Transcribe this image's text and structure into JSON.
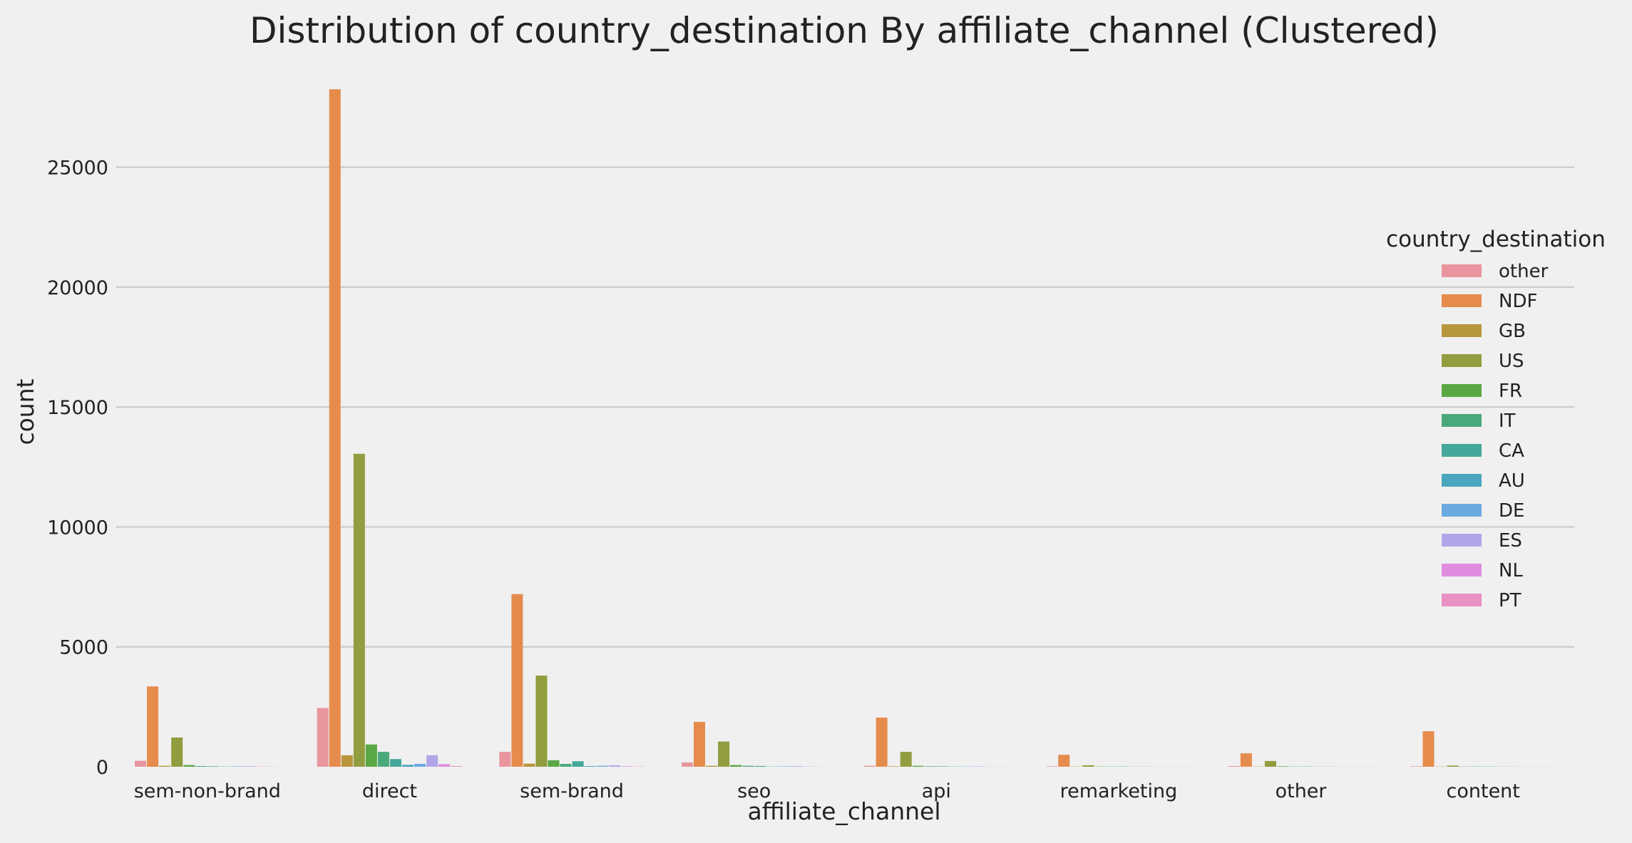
{
  "chart_data": {
    "type": "bar",
    "title": "Distribution of country_destination By affiliate_channel (Clustered)",
    "xlabel": "affiliate_channel",
    "ylabel": "count",
    "ylim": [
      0,
      29000
    ],
    "yticks": [
      0,
      5000,
      10000,
      15000,
      20000,
      25000
    ],
    "grid": "horizontal",
    "legend_title": "country_destination",
    "legend_position": "right",
    "categories": [
      "sem-non-brand",
      "direct",
      "sem-brand",
      "seo",
      "api",
      "remarketing",
      "other",
      "content"
    ],
    "series": [
      {
        "name": "other",
        "color": "#e8959e",
        "values": [
          250,
          2450,
          620,
          180,
          40,
          20,
          30,
          20
        ]
      },
      {
        "name": "NDF",
        "color": "#e58c4d",
        "values": [
          3350,
          28250,
          7200,
          1870,
          2050,
          500,
          560,
          1480
        ]
      },
      {
        "name": "GB",
        "color": "#b8963e",
        "values": [
          40,
          480,
          130,
          40,
          20,
          10,
          10,
          10
        ]
      },
      {
        "name": "US",
        "color": "#929d3f",
        "values": [
          1220,
          13050,
          3800,
          1050,
          620,
          60,
          240,
          50
        ]
      },
      {
        "name": "FR",
        "color": "#5aa844",
        "values": [
          70,
          930,
          270,
          70,
          40,
          10,
          20,
          10
        ]
      },
      {
        "name": "IT",
        "color": "#4aa97b",
        "values": [
          30,
          620,
          120,
          40,
          20,
          10,
          10,
          10
        ]
      },
      {
        "name": "CA",
        "color": "#45a89a",
        "values": [
          20,
          320,
          230,
          30,
          20,
          10,
          10,
          10
        ]
      },
      {
        "name": "AU",
        "color": "#4aa6bc",
        "values": [
          10,
          80,
          30,
          10,
          10,
          5,
          5,
          5
        ]
      },
      {
        "name": "DE",
        "color": "#6ba9e1",
        "values": [
          15,
          120,
          40,
          15,
          10,
          5,
          5,
          5
        ]
      },
      {
        "name": "ES",
        "color": "#b1a5e8",
        "values": [
          25,
          480,
          60,
          25,
          15,
          5,
          5,
          5
        ]
      },
      {
        "name": "NL",
        "color": "#e08de0",
        "values": [
          10,
          110,
          20,
          10,
          5,
          5,
          5,
          5
        ]
      },
      {
        "name": "PT",
        "color": "#e891c4",
        "values": [
          5,
          30,
          10,
          5,
          5,
          5,
          5,
          5
        ]
      }
    ]
  }
}
